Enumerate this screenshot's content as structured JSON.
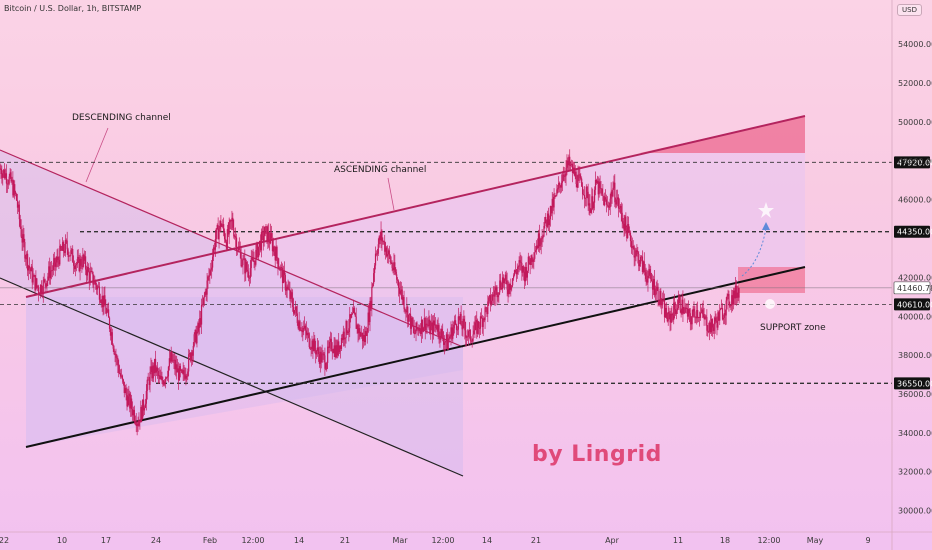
{
  "header": {
    "title": "Bitcoin / U.S. Dollar, 1h, BITSTAMP",
    "unit": "USD"
  },
  "watermark": "by Lingrid",
  "colors": {
    "candle": "#c2185b",
    "ascending_channel": "#b4245e",
    "support_line": "#111111",
    "descending_channel": "#222222",
    "resistance_zone": "#f06a8c",
    "level_line": "#333333",
    "price_tag": "#111111",
    "projection": "#5e8ad9"
  },
  "chart_data": {
    "type": "candlestick",
    "symbol": "Bitcoin / U.S. Dollar",
    "interval": "1h",
    "exchange": "BITSTAMP",
    "y_axis": {
      "range": [
        28900,
        55500
      ],
      "ticks": [
        30000,
        32000,
        34000,
        36000,
        38000,
        40000,
        42000,
        46000,
        48000,
        50000,
        52000,
        54000
      ],
      "tick_labels": [
        "30000.00",
        "32000.00",
        "34000.00",
        "36000.00",
        "38000.00",
        "40000.00",
        "42000.00",
        "46000.00",
        "48000.00",
        "50000.00",
        "52000.00",
        "54000.00"
      ],
      "unit": "USD"
    },
    "x_axis": {
      "tick_labels": [
        "22",
        "10",
        "17",
        "24",
        "Feb",
        "12:00",
        "14",
        "21",
        "Mar",
        "12:00",
        "14",
        "21",
        "Apr",
        "11",
        "18",
        "12:00",
        "May",
        "9"
      ]
    },
    "price_path": [
      [
        0.0,
        47600
      ],
      [
        0.5,
        47300
      ],
      [
        1.0,
        46900
      ],
      [
        1.5,
        46000
      ],
      [
        2.0,
        44000
      ],
      [
        2.5,
        42800
      ],
      [
        3.0,
        41900
      ],
      [
        3.5,
        41400
      ],
      [
        4.0,
        41700
      ],
      [
        4.5,
        42300
      ],
      [
        5.0,
        42600
      ],
      [
        5.5,
        43300
      ],
      [
        6.0,
        43600
      ],
      [
        6.5,
        43100
      ],
      [
        7.0,
        42600
      ],
      [
        7.5,
        42900
      ],
      [
        8.0,
        42200
      ],
      [
        8.5,
        41800
      ],
      [
        9.0,
        41300
      ],
      [
        9.5,
        40500
      ],
      [
        10.0,
        39400
      ],
      [
        10.5,
        37900
      ],
      [
        11.0,
        36700
      ],
      [
        11.5,
        35800
      ],
      [
        12.0,
        35200
      ],
      [
        12.5,
        34600
      ],
      [
        13.0,
        35400
      ],
      [
        13.5,
        36800
      ],
      [
        14.0,
        37400
      ],
      [
        14.5,
        36600
      ],
      [
        15.0,
        37000
      ],
      [
        15.5,
        37800
      ],
      [
        16.0,
        37200
      ],
      [
        16.5,
        36800
      ],
      [
        17.0,
        37500
      ],
      [
        17.5,
        38600
      ],
      [
        18.0,
        39400
      ],
      [
        18.5,
        41000
      ],
      [
        19.0,
        42300
      ],
      [
        19.5,
        44000
      ],
      [
        20.0,
        44800
      ],
      [
        20.5,
        43900
      ],
      [
        21.0,
        44900
      ],
      [
        21.5,
        43600
      ],
      [
        22.0,
        42700
      ],
      [
        22.5,
        42300
      ],
      [
        23.0,
        42900
      ],
      [
        23.5,
        43700
      ],
      [
        24.0,
        44300
      ],
      [
        24.5,
        43900
      ],
      [
        25.0,
        43200
      ],
      [
        25.5,
        42200
      ],
      [
        26.0,
        41400
      ],
      [
        26.5,
        40600
      ],
      [
        27.0,
        39800
      ],
      [
        27.5,
        39300
      ],
      [
        28.0,
        38800
      ],
      [
        28.5,
        38400
      ],
      [
        29.0,
        37900
      ],
      [
        29.5,
        37700
      ],
      [
        30.0,
        38600
      ],
      [
        30.5,
        38200
      ],
      [
        31.0,
        39000
      ],
      [
        31.5,
        39500
      ],
      [
        32.0,
        40000
      ],
      [
        32.5,
        39200
      ],
      [
        33.0,
        38800
      ],
      [
        33.5,
        40400
      ],
      [
        34.0,
        43300
      ],
      [
        34.5,
        44100
      ],
      [
        35.0,
        43400
      ],
      [
        35.5,
        42600
      ],
      [
        36.0,
        41800
      ],
      [
        36.5,
        40900
      ],
      [
        37.0,
        40000
      ],
      [
        37.5,
        39100
      ],
      [
        38.0,
        39500
      ],
      [
        38.5,
        39700
      ],
      [
        39.0,
        39300
      ],
      [
        39.5,
        39600
      ],
      [
        40.0,
        39000
      ],
      [
        40.5,
        38600
      ],
      [
        41.0,
        39400
      ],
      [
        41.5,
        39800
      ],
      [
        42.0,
        39400
      ],
      [
        42.5,
        38900
      ],
      [
        43.0,
        39300
      ],
      [
        43.5,
        39700
      ],
      [
        44.0,
        40300
      ],
      [
        44.5,
        40900
      ],
      [
        45.0,
        41400
      ],
      [
        45.5,
        41900
      ],
      [
        46.0,
        41500
      ],
      [
        46.5,
        42100
      ],
      [
        47.0,
        42600
      ],
      [
        47.5,
        42200
      ],
      [
        48.0,
        42900
      ],
      [
        48.5,
        43600
      ],
      [
        49.0,
        44200
      ],
      [
        49.5,
        44900
      ],
      [
        50.0,
        45600
      ],
      [
        50.5,
        46400
      ],
      [
        51.0,
        47400
      ],
      [
        51.5,
        47800
      ],
      [
        52.0,
        47300
      ],
      [
        52.5,
        46800
      ],
      [
        53.0,
        46400
      ],
      [
        53.5,
        45600
      ],
      [
        54.0,
        46800
      ],
      [
        54.5,
        46200
      ],
      [
        55.0,
        45600
      ],
      [
        55.5,
        46600
      ],
      [
        56.0,
        45700
      ],
      [
        56.5,
        44800
      ],
      [
        57.0,
        44100
      ],
      [
        57.5,
        43300
      ],
      [
        58.0,
        42800
      ],
      [
        58.5,
        42200
      ],
      [
        59.0,
        41800
      ],
      [
        59.5,
        41300
      ],
      [
        60.0,
        40500
      ],
      [
        60.5,
        39800
      ],
      [
        61.0,
        40300
      ],
      [
        61.5,
        40700
      ],
      [
        62.0,
        40300
      ],
      [
        62.5,
        39800
      ],
      [
        63.0,
        40300
      ],
      [
        63.5,
        40100
      ],
      [
        64.0,
        39600
      ],
      [
        64.5,
        39400
      ],
      [
        65.0,
        39900
      ],
      [
        65.5,
        40300
      ],
      [
        66.0,
        40800
      ],
      [
        66.5,
        41100
      ],
      [
        67.0,
        41460
      ]
    ],
    "levels": [
      {
        "price": 47920,
        "label": "47920.00"
      },
      {
        "price": 44350,
        "label": "44350.00"
      },
      {
        "price": 40610,
        "label": "40610.00"
      },
      {
        "price": 36550,
        "label": "36550.00"
      }
    ],
    "last_price": {
      "price": 41460.78,
      "label": "41460.78"
    },
    "annotations": [
      "DESCENDING channel",
      "ASCENDING channel",
      "SUPPORT zone"
    ]
  }
}
